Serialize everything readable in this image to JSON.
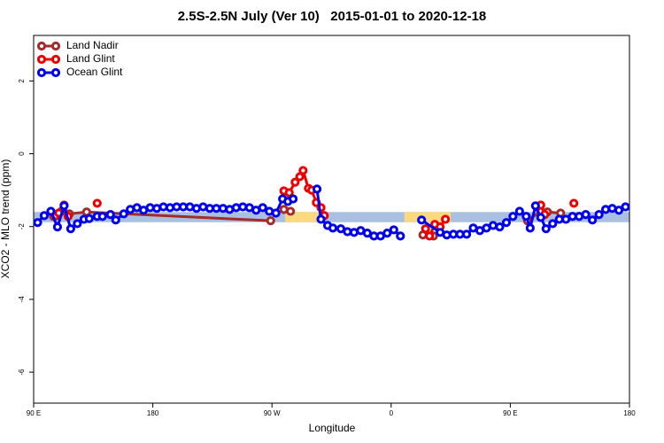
{
  "chart_data": {
    "type": "line",
    "title": "2.5S-2.5N July (Ver 10)   2015-01-01 to 2020-12-18",
    "x_label": "Longitude",
    "y_label": "XCO2 - MLO trend (ppm)",
    "xlim": [
      90,
      540
    ],
    "xticks": [
      {
        "value": 90,
        "label": "90 E"
      },
      180,
      {
        "value": 270,
        "label": "90 W"
      },
      {
        "value": 360,
        "label": "0"
      },
      {
        "value": 450,
        "label": "90 E"
      },
      {
        "value": 540,
        "label": "180"
      }
    ],
    "ylim": [
      -6.85,
      3.25
    ],
    "yticks": [
      -6,
      -4,
      -2,
      0,
      2
    ],
    "legend": "top-left",
    "bands": [
      {
        "x": [
          90,
          540
        ],
        "y": [
          -1.88,
          -1.6
        ],
        "color": "#a9c0e2"
      },
      {
        "x": [
          280,
          305
        ],
        "y": [
          -1.88,
          -1.6
        ],
        "color": "#fcd97f"
      },
      {
        "x": [
          370,
          405
        ],
        "y": [
          -1.88,
          -1.6
        ],
        "color": "#fcd97f"
      }
    ],
    "series": [
      {
        "name": "Land Nadir",
        "color": "#a52a2a",
        "x": [
          105,
          111,
          117,
          130,
          269,
          270,
          279,
          284,
          290,
          384,
          392,
          400,
          463,
          473,
          478,
          488
        ],
        "values": [
          -1.72,
          -1.58,
          -1.65,
          -1.6,
          -1.84,
          null,
          -1.53,
          -1.58,
          null,
          -2.23,
          -2.26,
          null,
          -1.84,
          -1.58,
          -1.6,
          -1.63
        ]
      },
      {
        "name": "Land Glint",
        "color": "#ee0000",
        "x": [
          107,
          109,
          113,
          116,
          130,
          138,
          150,
          279,
          283,
          287.5,
          291,
          293.5,
          297.5,
          300,
          303.5,
          307,
          309.5,
          350,
          386,
          389,
          393,
          397,
          401,
          450,
          470,
          473,
          476,
          490,
          498
        ],
        "values": [
          -1.7,
          -1.63,
          -1.41,
          -1.72,
          null,
          -1.36,
          null,
          -1.02,
          -1.07,
          -0.78,
          -0.63,
          -0.46,
          -0.95,
          -1.0,
          -1.34,
          -1.48,
          -1.7,
          null,
          -2.06,
          -2.26,
          -1.94,
          -2.01,
          -1.8,
          null,
          -1.46,
          -1.41,
          -1.67,
          null,
          -1.36
        ]
      },
      {
        "name": "Ocean Glint",
        "color": "#0000ee",
        "x": [
          93,
          98,
          103,
          108,
          113,
          118,
          123,
          128,
          132,
          138,
          142,
          148,
          152,
          158,
          163,
          168,
          173,
          178,
          183,
          188,
          193,
          198,
          203,
          208,
          213,
          218,
          223,
          228,
          233,
          238,
          243,
          248,
          253,
          258,
          263,
          268,
          273,
          278,
          282,
          286,
          295,
          304,
          307,
          312,
          316,
          322,
          327,
          332,
          337,
          342,
          347,
          352,
          357,
          362,
          367,
          375,
          383,
          397,
          402,
          407,
          412,
          417,
          422,
          427,
          432,
          437,
          442,
          447,
          452,
          457,
          462,
          465,
          469,
          473,
          477,
          482,
          487,
          492,
          497,
          502,
          507,
          512,
          517,
          522,
          527,
          532,
          537
        ],
        "values": [
          -1.89,
          -1.7,
          -1.58,
          -2.01,
          -1.43,
          -2.06,
          -1.92,
          -1.8,
          -1.78,
          -1.72,
          -1.72,
          -1.67,
          -1.82,
          -1.65,
          -1.53,
          -1.48,
          -1.55,
          -1.48,
          -1.5,
          -1.46,
          -1.48,
          -1.46,
          -1.46,
          -1.46,
          -1.5,
          -1.46,
          -1.5,
          -1.5,
          -1.5,
          -1.53,
          -1.48,
          -1.46,
          -1.48,
          -1.55,
          -1.48,
          -1.58,
          -1.63,
          -1.24,
          -1.31,
          -1.24,
          null,
          -0.97,
          -1.8,
          -1.97,
          -2.04,
          -2.06,
          -2.14,
          -2.16,
          -2.11,
          -2.18,
          -2.26,
          -2.26,
          -2.18,
          -2.09,
          -2.26,
          null,
          -1.82,
          -2.16,
          -2.23,
          -2.21,
          -2.21,
          -2.21,
          -2.04,
          -2.11,
          -2.04,
          -1.97,
          -2.01,
          -1.89,
          -1.72,
          -1.58,
          -1.72,
          -2.04,
          -1.43,
          -1.75,
          -2.06,
          -1.92,
          -1.8,
          -1.8,
          -1.72,
          -1.72,
          -1.67,
          -1.82,
          -1.67,
          -1.53,
          -1.5,
          -1.55,
          -1.46
        ]
      }
    ]
  }
}
